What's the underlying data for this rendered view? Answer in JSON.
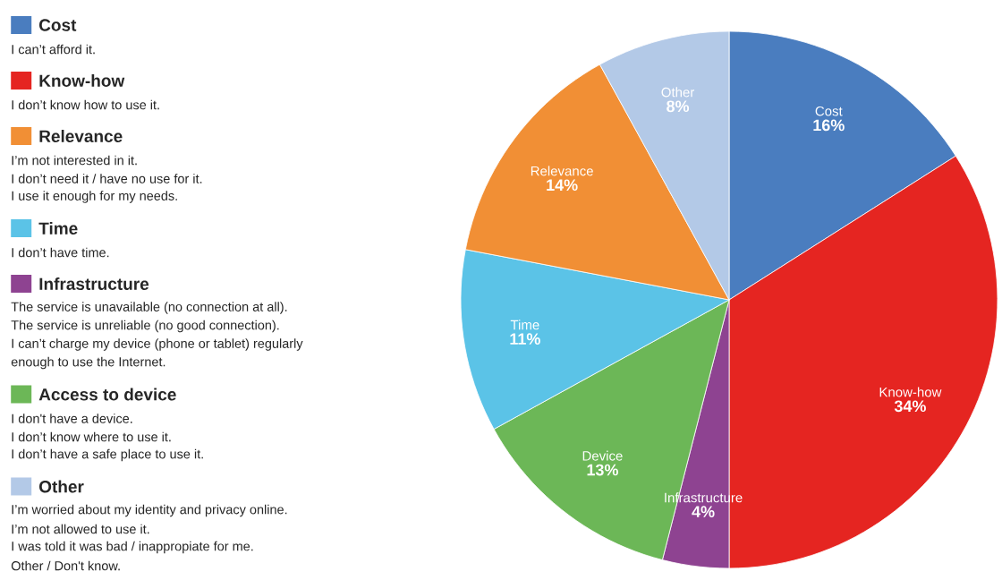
{
  "chart_data": {
    "type": "pie",
    "categories": [
      "Cost",
      "Know-how",
      "Infrastructure",
      "Device",
      "Time",
      "Relevance",
      "Other"
    ],
    "values": [
      16,
      34,
      4,
      13,
      11,
      14,
      8
    ],
    "value_labels": [
      "16%",
      "34%",
      "4%",
      "13%",
      "11%",
      "14%",
      "8%"
    ],
    "colors": [
      "#4a7dbf",
      "#e52521",
      "#8e4391",
      "#6cb757",
      "#5bc3e7",
      "#f18f35",
      "#b3c9e7"
    ],
    "annotations": [
      "Cost",
      "I can’t afford it.",
      "Know-how",
      "I don’t know how to use it.",
      "Relevance",
      "I’m not interested in it.",
      "I don’t need it / have no use for it.",
      "I use it enough for my needs.",
      "Time",
      "I don’t have time.",
      "Infrastructure",
      "The service is unavailable (no connection at all).",
      "The service is unreliable (no good connection).",
      "I can’t charge my device (phone or tablet) regularly",
      "enough to use the Internet.",
      "Access to device",
      "I don't have a device.",
      "I don’t know where to use it.",
      "I don’t have a safe place to use it.",
      "Other",
      "I’m worried about my identity and privacy online.",
      "I’m not allowed to use it.",
      "I was told it was bad / inappropiate for me.",
      "Other / Don't know."
    ]
  }
}
